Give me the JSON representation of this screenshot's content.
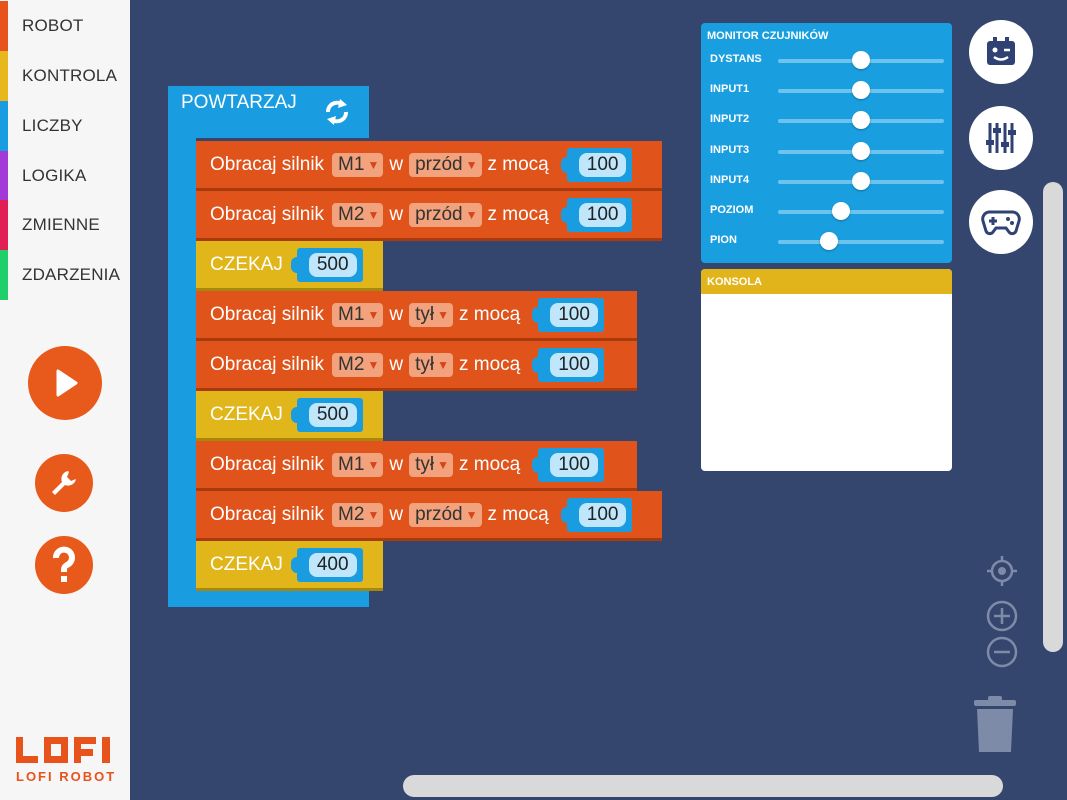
{
  "categories": [
    {
      "label": "ROBOT",
      "color": "#e8521b"
    },
    {
      "label": "KONTROLA",
      "color": "#e6b81e"
    },
    {
      "label": "LICZBY",
      "color": "#1a9de0"
    },
    {
      "label": "LOGIKA",
      "color": "#a33ad8"
    },
    {
      "label": "ZMIENNE",
      "color": "#e21f55"
    },
    {
      "label": "ZDARZENIA",
      "color": "#1fcf6a"
    }
  ],
  "logo": {
    "text": "LOFI ROBOT"
  },
  "loop_block": {
    "label": "POWTARZAJ"
  },
  "blocks": [
    {
      "type": "motor",
      "label": "Obracaj silnik",
      "motor": "M1",
      "w": "w",
      "direction": "przód",
      "power_label": "z mocą",
      "value": "100"
    },
    {
      "type": "motor",
      "label": "Obracaj silnik",
      "motor": "M2",
      "w": "w",
      "direction": "przód",
      "power_label": "z mocą",
      "value": "100"
    },
    {
      "type": "wait",
      "label": "CZEKAJ",
      "value": "500"
    },
    {
      "type": "motor",
      "label": "Obracaj silnik",
      "motor": "M1",
      "w": "w",
      "direction": "tył",
      "power_label": "z mocą",
      "value": "100"
    },
    {
      "type": "motor",
      "label": "Obracaj silnik",
      "motor": "M2",
      "w": "w",
      "direction": "tył",
      "power_label": "z mocą",
      "value": "100"
    },
    {
      "type": "wait",
      "label": "CZEKAJ",
      "value": "500"
    },
    {
      "type": "motor",
      "label": "Obracaj silnik",
      "motor": "M1",
      "w": "w",
      "direction": "tył",
      "power_label": "z mocą",
      "value": "100"
    },
    {
      "type": "motor",
      "label": "Obracaj silnik",
      "motor": "M2",
      "w": "w",
      "direction": "przód",
      "power_label": "z mocą",
      "value": "100"
    },
    {
      "type": "wait",
      "label": "CZEKAJ",
      "value": "400"
    }
  ],
  "monitor": {
    "title": "MONITOR CZUJNIKÓW",
    "sensors": [
      {
        "label": "DYSTANS",
        "level": 0.5
      },
      {
        "label": "INPUT1",
        "level": 0.5
      },
      {
        "label": "INPUT2",
        "level": 0.5
      },
      {
        "label": "INPUT3",
        "level": 0.5
      },
      {
        "label": "INPUT4",
        "level": 0.5
      },
      {
        "label": "POZIOM",
        "level": 0.38
      },
      {
        "label": "PION",
        "level": 0.31
      }
    ]
  },
  "console": {
    "title": "KONSOLA"
  },
  "colors": {
    "workspace": "#34466e",
    "accent_orange": "#e85a1c",
    "motor_block": "#e0541c",
    "wait_block": "#e0b61b",
    "loop_block": "#1a9de0",
    "monitor": "#199fe0"
  },
  "icons": {
    "run": "play-icon",
    "settings": "wrench-icon",
    "help": "question-icon",
    "robot": "robot-icon",
    "sliders": "sliders-icon",
    "gamepad": "gamepad-icon",
    "center": "crosshair-icon",
    "zoom_in": "zoom-in-icon",
    "zoom_out": "zoom-out-icon",
    "trash": "trash-icon",
    "repeat": "repeat-icon"
  }
}
